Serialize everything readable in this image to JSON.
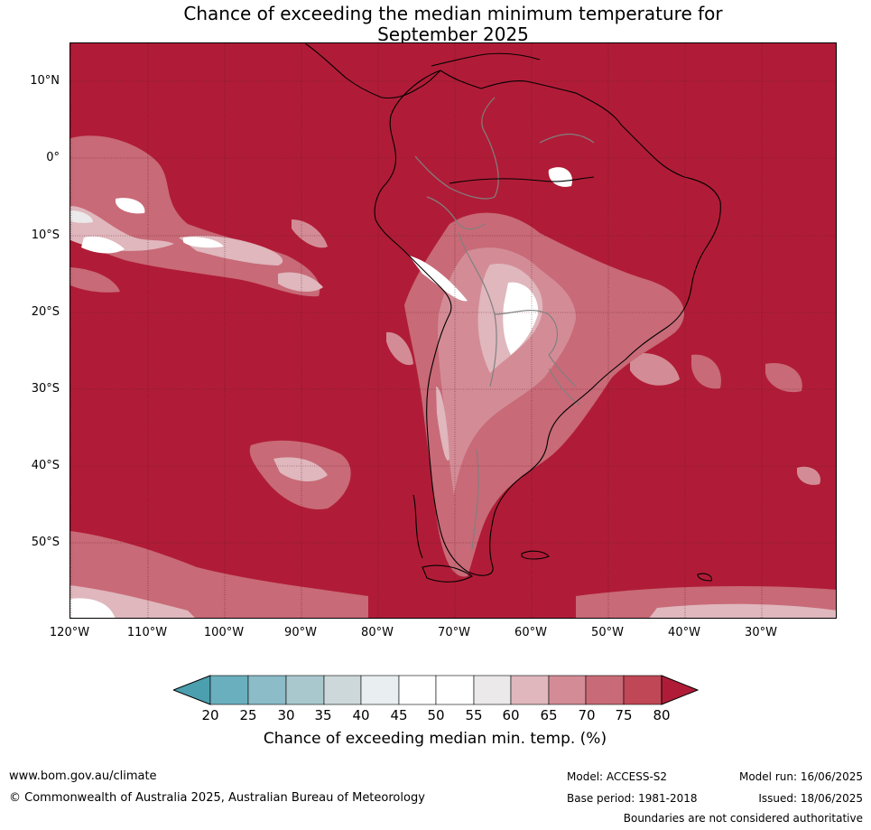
{
  "title": {
    "line1": "Chance of exceeding the median minimum temperature for",
    "line2": "September 2025"
  },
  "map": {
    "latitude_labels": [
      "10°N",
      "0°",
      "10°S",
      "20°S",
      "30°S",
      "40°S",
      "50°S"
    ],
    "longitude_labels": [
      "120°W",
      "110°W",
      "100°W",
      "90°W",
      "80°W",
      "70°W",
      "60°W",
      "50°W",
      "40°W",
      "30°W"
    ],
    "colors": {
      "background_high": "#b01c37",
      "ocean_grid": "#5a1020",
      "coast": "#000000",
      "borders": "#808080"
    }
  },
  "legend": {
    "ticks": [
      "20",
      "25",
      "30",
      "35",
      "40",
      "45",
      "50",
      "55",
      "60",
      "65",
      "70",
      "75",
      "80"
    ],
    "colors": [
      "#4b9fae",
      "#6aafbe",
      "#8bbcc7",
      "#a9c8ce",
      "#cdd8da",
      "#e9eff1",
      "#ffffff",
      "#ffffff",
      "#ebe9ea",
      "#dfb7bd",
      "#d38c96",
      "#c86a77",
      "#bf4756",
      "#b01c37"
    ],
    "label": "Chance of exceeding median min. temp. (%)"
  },
  "footer": {
    "url": "www.bom.gov.au/climate",
    "copyright": "© Commonwealth of Australia 2025, Australian Bureau of Meteorology",
    "model": "Model: ACCESS-S2",
    "base_period": "Base period: 1981-2018",
    "model_run": "Model run: 16/06/2025",
    "issued": "Issued: 18/06/2025",
    "disclaimer": "Boundaries are not considered authoritative"
  }
}
